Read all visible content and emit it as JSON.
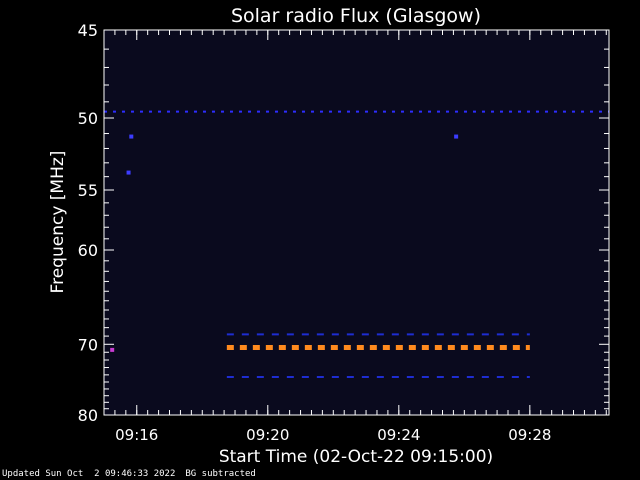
{
  "chart_data": {
    "type": "heatmap",
    "title": "Solar radio Flux (Glasgow)",
    "xlabel": "Start Time (02-Oct-22 09:15:00)",
    "ylabel": "Frequency [MHz]",
    "x_range_minutes": [
      "09:15:00",
      "09:30:25"
    ],
    "y_range_mhz": [
      45,
      80
    ],
    "x_ticks": [
      "09:16",
      "09:20",
      "09:24",
      "09:28"
    ],
    "y_ticks": [
      45,
      50,
      55,
      60,
      70,
      80
    ],
    "y_scale": "reciprocal",
    "background_color": "#0a0a1e",
    "features": [
      {
        "type": "dashed-line",
        "color": "#2d2dff",
        "freq_mhz": 49.6,
        "from": "09:15:00",
        "to": "09:30:25"
      },
      {
        "type": "dashed-line",
        "color": "#1e2dd2",
        "freq_mhz": 68.8,
        "from": "09:18:45",
        "to": "09:28:00"
      },
      {
        "type": "dashed-line",
        "color": "#ff8a1e",
        "freq_mhz": 70.4,
        "from": "09:18:45",
        "to": "09:28:00"
      },
      {
        "type": "dashed-line",
        "color": "#1e2dd2",
        "freq_mhz": 74.3,
        "from": "09:18:45",
        "to": "09:28:00"
      },
      {
        "type": "point",
        "color": "#3c3cff",
        "time": "09:15:50",
        "freq_mhz": 51.2
      },
      {
        "type": "point",
        "color": "#3c3cff",
        "time": "09:15:45",
        "freq_mhz": 53.7
      },
      {
        "type": "point",
        "color": "#3c3cff",
        "time": "09:25:45",
        "freq_mhz": 51.2
      },
      {
        "type": "point",
        "color": "#c83cd2",
        "time": "09:15:15",
        "freq_mhz": 70.7
      }
    ]
  },
  "footer": {
    "updated": "Updated Sun Oct  2 09:46:33 2022",
    "note": "BG subtracted"
  }
}
